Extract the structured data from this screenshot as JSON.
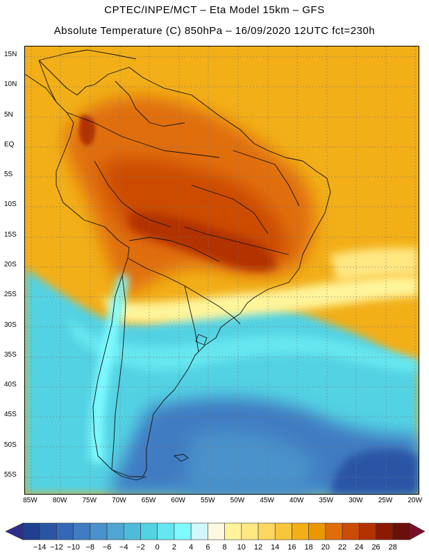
{
  "header": {
    "line1": "CPTEC/INPE/MCT –  Eta Model 15km – GFS",
    "line2": "Absolute Temperature (C) 850hPa – 16/09/2020 12UTC fct=230h"
  },
  "map": {
    "lat_labels": [
      "15N",
      "10N",
      "5N",
      "EQ",
      "5S",
      "10S",
      "15S",
      "20S",
      "25S",
      "30S",
      "35S",
      "40S",
      "45S",
      "50S",
      "55S"
    ],
    "lat_values": [
      15,
      10,
      5,
      0,
      -5,
      -10,
      -15,
      -20,
      -25,
      -30,
      -35,
      -40,
      -45,
      -50,
      -55
    ],
    "lon_labels": [
      "85W",
      "80W",
      "75W",
      "70W",
      "65W",
      "60W",
      "55W",
      "50W",
      "45W",
      "40W",
      "35W",
      "30W",
      "25W",
      "20W"
    ],
    "lon_values": [
      -85,
      -80,
      -75,
      -70,
      -65,
      -60,
      -55,
      -50,
      -45,
      -40,
      -35,
      -30,
      -25,
      -20
    ],
    "lat_range": [
      -58,
      16.5
    ],
    "lon_range": [
      -86,
      -19.5
    ]
  },
  "colorbar": {
    "labels": [
      "-14",
      "-12",
      "-10",
      "-8",
      "-6",
      "-4",
      "-2",
      "0",
      "2",
      "4",
      "6",
      "8",
      "10",
      "12",
      "14",
      "16",
      "18",
      "20",
      "22",
      "24",
      "26",
      "28"
    ],
    "colors": [
      "#1f3f8f",
      "#2a55a5",
      "#3468b6",
      "#3f7cc2",
      "#4a92cb",
      "#4fa6d3",
      "#4dbcdb",
      "#53d2e3",
      "#66e6ef",
      "#7ffbff",
      "#d2f6fb",
      "#fff8e0",
      "#fff49a",
      "#ffe782",
      "#fed760",
      "#f8c63c",
      "#f2af18",
      "#eb9700",
      "#e06e08",
      "#cc4b05",
      "#b23202",
      "#8c1a03",
      "#6b0f0a"
    ],
    "low_arrow": "#2d2e8c",
    "high_arrow": "#7a0f2a"
  }
}
